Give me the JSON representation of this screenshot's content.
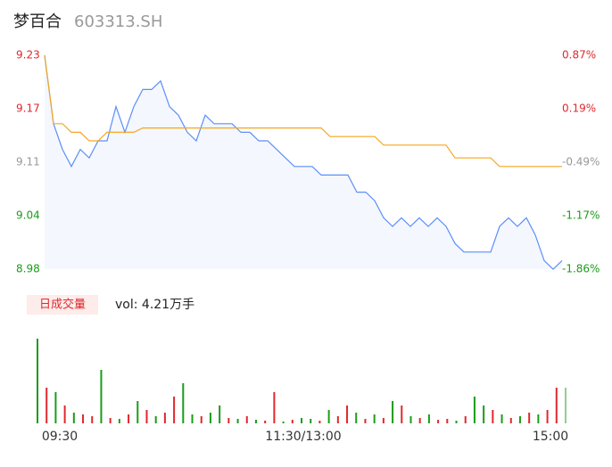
{
  "chart_data": [
    {
      "type": "line",
      "title": "梦百合",
      "subtitle": "603313.SH",
      "categories": [
        "09:30",
        null,
        null,
        null,
        null,
        null,
        null,
        null,
        null,
        null,
        null,
        null,
        null,
        null,
        null,
        null,
        null,
        null,
        null,
        null,
        null,
        null,
        null,
        null,
        null,
        null,
        null,
        null,
        null,
        "11:30/13:00",
        null,
        null,
        null,
        null,
        null,
        null,
        null,
        null,
        null,
        null,
        null,
        null,
        null,
        null,
        null,
        null,
        null,
        null,
        null,
        null,
        null,
        null,
        null,
        null,
        null,
        null,
        null,
        null,
        "15:00"
      ],
      "series": [
        {
          "name": "price",
          "color": "#5b8ff9",
          "values": [
            9.23,
            9.15,
            9.12,
            9.1,
            9.12,
            9.11,
            9.13,
            9.13,
            9.17,
            9.14,
            9.17,
            9.19,
            9.19,
            9.2,
            9.17,
            9.16,
            9.14,
            9.13,
            9.16,
            9.15,
            9.15,
            9.15,
            9.14,
            9.14,
            9.13,
            9.13,
            9.12,
            9.11,
            9.1,
            9.1,
            9.1,
            9.09,
            9.09,
            9.09,
            9.09,
            9.07,
            9.07,
            9.06,
            9.04,
            9.03,
            9.04,
            9.03,
            9.04,
            9.03,
            9.04,
            9.03,
            9.01,
            9.0,
            9.0,
            9.0,
            9.0,
            9.03,
            9.04,
            9.03,
            9.04,
            9.02,
            8.99,
            8.98,
            8.99
          ]
        },
        {
          "name": "average",
          "color": "#f5a623",
          "values": [
            9.23,
            9.15,
            9.15,
            9.14,
            9.14,
            9.13,
            9.13,
            9.14,
            9.14,
            9.14,
            9.14,
            9.145,
            9.145,
            9.145,
            9.145,
            9.145,
            9.145,
            9.145,
            9.145,
            9.145,
            9.145,
            9.145,
            9.145,
            9.145,
            9.145,
            9.145,
            9.145,
            9.145,
            9.145,
            9.145,
            9.145,
            9.145,
            9.135,
            9.135,
            9.135,
            9.135,
            9.135,
            9.135,
            9.125,
            9.125,
            9.125,
            9.125,
            9.125,
            9.125,
            9.125,
            9.125,
            9.11,
            9.11,
            9.11,
            9.11,
            9.11,
            9.1,
            9.1,
            9.1,
            9.1,
            9.1,
            9.1,
            9.1,
            9.1
          ]
        }
      ],
      "ylim": [
        8.98,
        9.23
      ],
      "yticks": [
        9.23,
        {
          "value": 9.1675,
          "label": "9.17"
        },
        {
          "value": 9.105,
          "label": "9.11"
        },
        {
          "value": 9.0425,
          "label": "9.04"
        },
        8.98
      ],
      "y2lim": [
        -1.86,
        0.87
      ],
      "y2ticks": [
        {
          "value": 0.87,
          "label": "0.87%"
        },
        {
          "value": 0.1875,
          "label": "0.19%"
        },
        {
          "value": -0.495,
          "label": "-0.49%"
        },
        {
          "value": -1.1775,
          "label": "-1.17%"
        },
        {
          "value": -1.86,
          "label": "-1.86%"
        }
      ],
      "tick_colors": [
        "#e0282e",
        "#e0282e",
        "#999999",
        "#1a9c1a",
        "#1a9c1a"
      ]
    },
    {
      "type": "bar",
      "indicator": "日成交量",
      "text": "vol: 4.21万手",
      "values": [
        95,
        40,
        35,
        20,
        12,
        10,
        8,
        60,
        6,
        5,
        10,
        25,
        15,
        8,
        12,
        30,
        45,
        10,
        8,
        12,
        20,
        6,
        5,
        8,
        4,
        3,
        35,
        2,
        4,
        6,
        5,
        3,
        15,
        8,
        20,
        12,
        5,
        10,
        6,
        25,
        20,
        8,
        6,
        10,
        4,
        5,
        3,
        8,
        30,
        20,
        15,
        10,
        6,
        8,
        12,
        10,
        15,
        40,
        40
      ],
      "colors": [
        "#1a9c1a",
        "#e0282e",
        "#1a9c1a",
        "#e0282e",
        "#1a9c1a",
        "#e0282e",
        "#e0282e",
        "#1a9c1a",
        "#e0282e",
        "#1a9c1a",
        "#e0282e",
        "#1a9c1a",
        "#e0282e",
        "#1a9c1a",
        "#e0282e",
        "#e0282e",
        "#1a9c1a",
        "#1a9c1a",
        "#e0282e",
        "#1a9c1a",
        "#1a9c1a",
        "#e0282e",
        "#1a9c1a",
        "#e0282e",
        "#1a9c1a",
        "#e0282e",
        "#e0282e",
        "#1a9c1a",
        "#e0282e",
        "#1a9c1a",
        "#1a9c1a",
        "#e0282e",
        "#1a9c1a",
        "#e0282e",
        "#e0282e",
        "#1a9c1a",
        "#e0282e",
        "#1a9c1a",
        "#e0282e",
        "#1a9c1a",
        "#e0282e",
        "#1a9c1a",
        "#e0282e",
        "#1a9c1a",
        "#e0282e",
        "#e0282e",
        "#1a9c1a",
        "#e0282e",
        "#1a9c1a",
        "#1a9c1a",
        "#e0282e",
        "#1a9c1a",
        "#e0282e",
        "#1a9c1a",
        "#e0282e",
        "#1a9c1a",
        "#e0282e",
        "#e0282e",
        "#8fd18f"
      ],
      "ylim": [
        0,
        100
      ]
    }
  ]
}
